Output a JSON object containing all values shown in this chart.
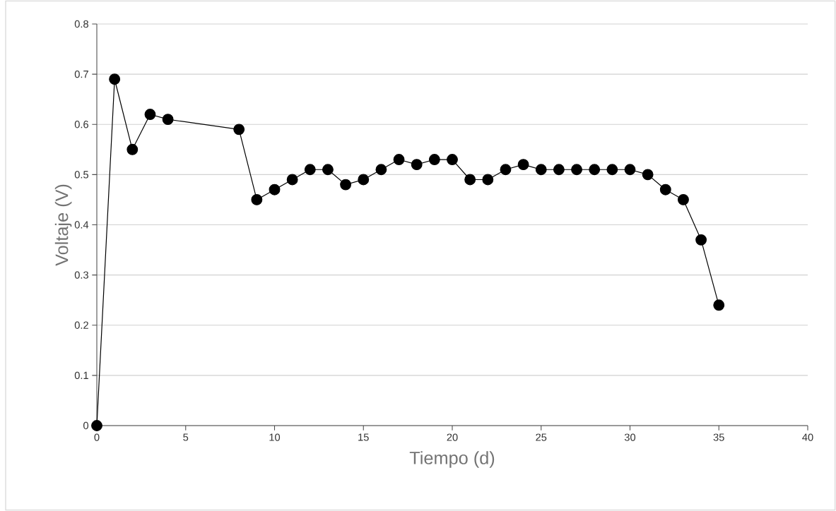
{
  "chart_data": {
    "type": "line",
    "xlabel": "Tiempo (d)",
    "ylabel": "Voltaje (V)",
    "x": [
      0,
      1,
      2,
      3,
      4,
      8,
      9,
      10,
      11,
      12,
      13,
      14,
      15,
      16,
      17,
      18,
      19,
      20,
      21,
      22,
      23,
      24,
      25,
      26,
      27,
      28,
      29,
      30,
      31,
      32,
      33,
      34,
      35
    ],
    "series": [
      {
        "color": "#000000",
        "values": [
          0,
          0.69,
          0.55,
          0.62,
          0.61,
          0.59,
          0.45,
          0.47,
          0.49,
          0.51,
          0.51,
          0.48,
          0.49,
          0.51,
          0.53,
          0.52,
          0.53,
          0.53,
          0.49,
          0.49,
          0.51,
          0.52,
          0.51,
          0.51,
          0.51,
          0.51,
          0.51,
          0.51,
          0.5,
          0.47,
          0.45,
          0.37,
          0.24
        ]
      }
    ],
    "xlim": [
      0,
      40
    ],
    "xticks": [
      0,
      5,
      10,
      15,
      20,
      25,
      30,
      35,
      40
    ],
    "ylim": [
      0,
      0.8
    ],
    "yticks": [
      0,
      0.1,
      0.2,
      0.3,
      0.4,
      0.5,
      0.6,
      0.7,
      0.8
    ],
    "grid": "y",
    "marker": "circle",
    "line_style": "solid"
  }
}
